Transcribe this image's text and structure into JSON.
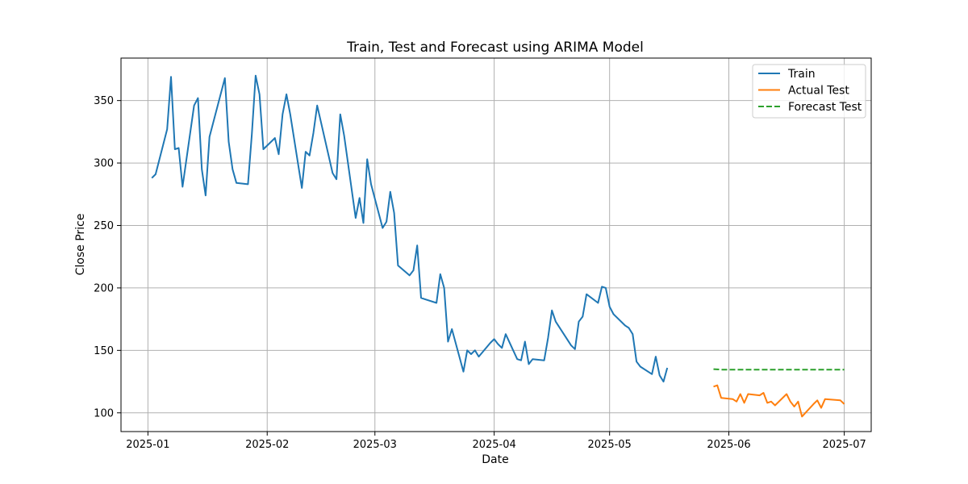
{
  "chart_data": {
    "type": "line",
    "title": "Train, Test and Forecast using ARIMA Model",
    "xlabel": "Date",
    "ylabel": "Close Price",
    "xlim": [
      "2024-12-25",
      "2025-07-08"
    ],
    "ylim": [
      85,
      384
    ],
    "xticks": [
      "2025-01-01",
      "2025-02-01",
      "2025-03-01",
      "2025-04-01",
      "2025-05-01",
      "2025-06-01",
      "2025-07-01"
    ],
    "xtick_labels": [
      "2025-01",
      "2025-02",
      "2025-03",
      "2025-04",
      "2025-05",
      "2025-06",
      "2025-07"
    ],
    "yticks": [
      100,
      150,
      200,
      250,
      300,
      350
    ],
    "ytick_labels": [
      "100",
      "150",
      "200",
      "250",
      "300",
      "350"
    ],
    "grid": true,
    "legend_position": "top-right",
    "series": [
      {
        "name": "Train",
        "color": "#1f77b4",
        "style": "solid",
        "points": [
          [
            "2025-01-02",
            288
          ],
          [
            "2025-01-03",
            291
          ],
          [
            "2025-01-06",
            327
          ],
          [
            "2025-01-07",
            369
          ],
          [
            "2025-01-08",
            311
          ],
          [
            "2025-01-09",
            312
          ],
          [
            "2025-01-10",
            281
          ],
          [
            "2025-01-13",
            346
          ],
          [
            "2025-01-14",
            352
          ],
          [
            "2025-01-15",
            295
          ],
          [
            "2025-01-16",
            274
          ],
          [
            "2025-01-17",
            321
          ],
          [
            "2025-01-21",
            368
          ],
          [
            "2025-01-22",
            317
          ],
          [
            "2025-01-23",
            295
          ],
          [
            "2025-01-24",
            284
          ],
          [
            "2025-01-27",
            283
          ],
          [
            "2025-01-28",
            323
          ],
          [
            "2025-01-29",
            370
          ],
          [
            "2025-01-30",
            355
          ],
          [
            "2025-01-31",
            311
          ],
          [
            "2025-02-03",
            320
          ],
          [
            "2025-02-04",
            307
          ],
          [
            "2025-02-05",
            339
          ],
          [
            "2025-02-06",
            355
          ],
          [
            "2025-02-07",
            339
          ],
          [
            "2025-02-10",
            280
          ],
          [
            "2025-02-11",
            309
          ],
          [
            "2025-02-12",
            306
          ],
          [
            "2025-02-13",
            324
          ],
          [
            "2025-02-14",
            346
          ],
          [
            "2025-02-18",
            292
          ],
          [
            "2025-02-19",
            287
          ],
          [
            "2025-02-20",
            339
          ],
          [
            "2025-02-21",
            322
          ],
          [
            "2025-02-24",
            256
          ],
          [
            "2025-02-25",
            272
          ],
          [
            "2025-02-26",
            252
          ],
          [
            "2025-02-27",
            303
          ],
          [
            "2025-02-28",
            283
          ],
          [
            "2025-03-03",
            248
          ],
          [
            "2025-03-04",
            253
          ],
          [
            "2025-03-05",
            277
          ],
          [
            "2025-03-06",
            260
          ],
          [
            "2025-03-07",
            218
          ],
          [
            "2025-03-10",
            210
          ],
          [
            "2025-03-11",
            214
          ],
          [
            "2025-03-12",
            234
          ],
          [
            "2025-03-13",
            192
          ],
          [
            "2025-03-14",
            191
          ],
          [
            "2025-03-17",
            188
          ],
          [
            "2025-03-18",
            211
          ],
          [
            "2025-03-19",
            200
          ],
          [
            "2025-03-20",
            157
          ],
          [
            "2025-03-21",
            167
          ],
          [
            "2025-03-24",
            133
          ],
          [
            "2025-03-25",
            150
          ],
          [
            "2025-03-26",
            147
          ],
          [
            "2025-03-27",
            150
          ],
          [
            "2025-03-28",
            145
          ],
          [
            "2025-03-31",
            156
          ],
          [
            "2025-04-01",
            159
          ],
          [
            "2025-04-02",
            155
          ],
          [
            "2025-04-03",
            152
          ],
          [
            "2025-04-04",
            163
          ],
          [
            "2025-04-07",
            143
          ],
          [
            "2025-04-08",
            142
          ],
          [
            "2025-04-09",
            157
          ],
          [
            "2025-04-10",
            139
          ],
          [
            "2025-04-11",
            143
          ],
          [
            "2025-04-14",
            142
          ],
          [
            "2025-04-15",
            160
          ],
          [
            "2025-04-16",
            182
          ],
          [
            "2025-04-17",
            173
          ],
          [
            "2025-04-21",
            154
          ],
          [
            "2025-04-22",
            151
          ],
          [
            "2025-04-23",
            173
          ],
          [
            "2025-04-24",
            177
          ],
          [
            "2025-04-25",
            195
          ],
          [
            "2025-04-28",
            188
          ],
          [
            "2025-04-29",
            201
          ],
          [
            "2025-04-30",
            200
          ],
          [
            "2025-05-01",
            185
          ],
          [
            "2025-05-02",
            179
          ],
          [
            "2025-05-05",
            170
          ],
          [
            "2025-05-06",
            168
          ],
          [
            "2025-05-07",
            163
          ],
          [
            "2025-05-08",
            141
          ],
          [
            "2025-05-09",
            137
          ],
          [
            "2025-05-12",
            131
          ],
          [
            "2025-05-13",
            145
          ],
          [
            "2025-05-14",
            130
          ],
          [
            "2025-05-15",
            125
          ],
          [
            "2025-05-16",
            136
          ]
        ]
      },
      {
        "name": "Actual Test",
        "color": "#ff7f0e",
        "style": "solid",
        "points": [
          [
            "2025-05-28",
            121
          ],
          [
            "2025-05-29",
            122
          ],
          [
            "2025-05-30",
            112
          ],
          [
            "2025-06-02",
            111
          ],
          [
            "2025-06-03",
            109
          ],
          [
            "2025-06-04",
            115
          ],
          [
            "2025-06-05",
            108
          ],
          [
            "2025-06-06",
            115
          ],
          [
            "2025-06-09",
            114
          ],
          [
            "2025-06-10",
            116
          ],
          [
            "2025-06-11",
            108
          ],
          [
            "2025-06-12",
            109
          ],
          [
            "2025-06-13",
            106
          ],
          [
            "2025-06-16",
            115
          ],
          [
            "2025-06-17",
            109
          ],
          [
            "2025-06-18",
            105
          ],
          [
            "2025-06-19",
            109
          ],
          [
            "2025-06-20",
            97
          ],
          [
            "2025-06-23",
            107
          ],
          [
            "2025-06-24",
            110
          ],
          [
            "2025-06-25",
            104
          ],
          [
            "2025-06-26",
            111
          ],
          [
            "2025-06-30",
            110
          ],
          [
            "2025-07-01",
            107
          ]
        ]
      },
      {
        "name": "Forecast Test",
        "color": "#2ca02c",
        "style": "dashed",
        "points": [
          [
            "2025-05-28",
            135
          ],
          [
            "2025-05-29",
            134.8
          ],
          [
            "2025-05-30",
            134.6
          ],
          [
            "2025-06-02",
            134.5
          ],
          [
            "2025-06-10",
            134.5
          ],
          [
            "2025-06-20",
            134.5
          ],
          [
            "2025-07-01",
            134.5
          ]
        ]
      }
    ]
  }
}
